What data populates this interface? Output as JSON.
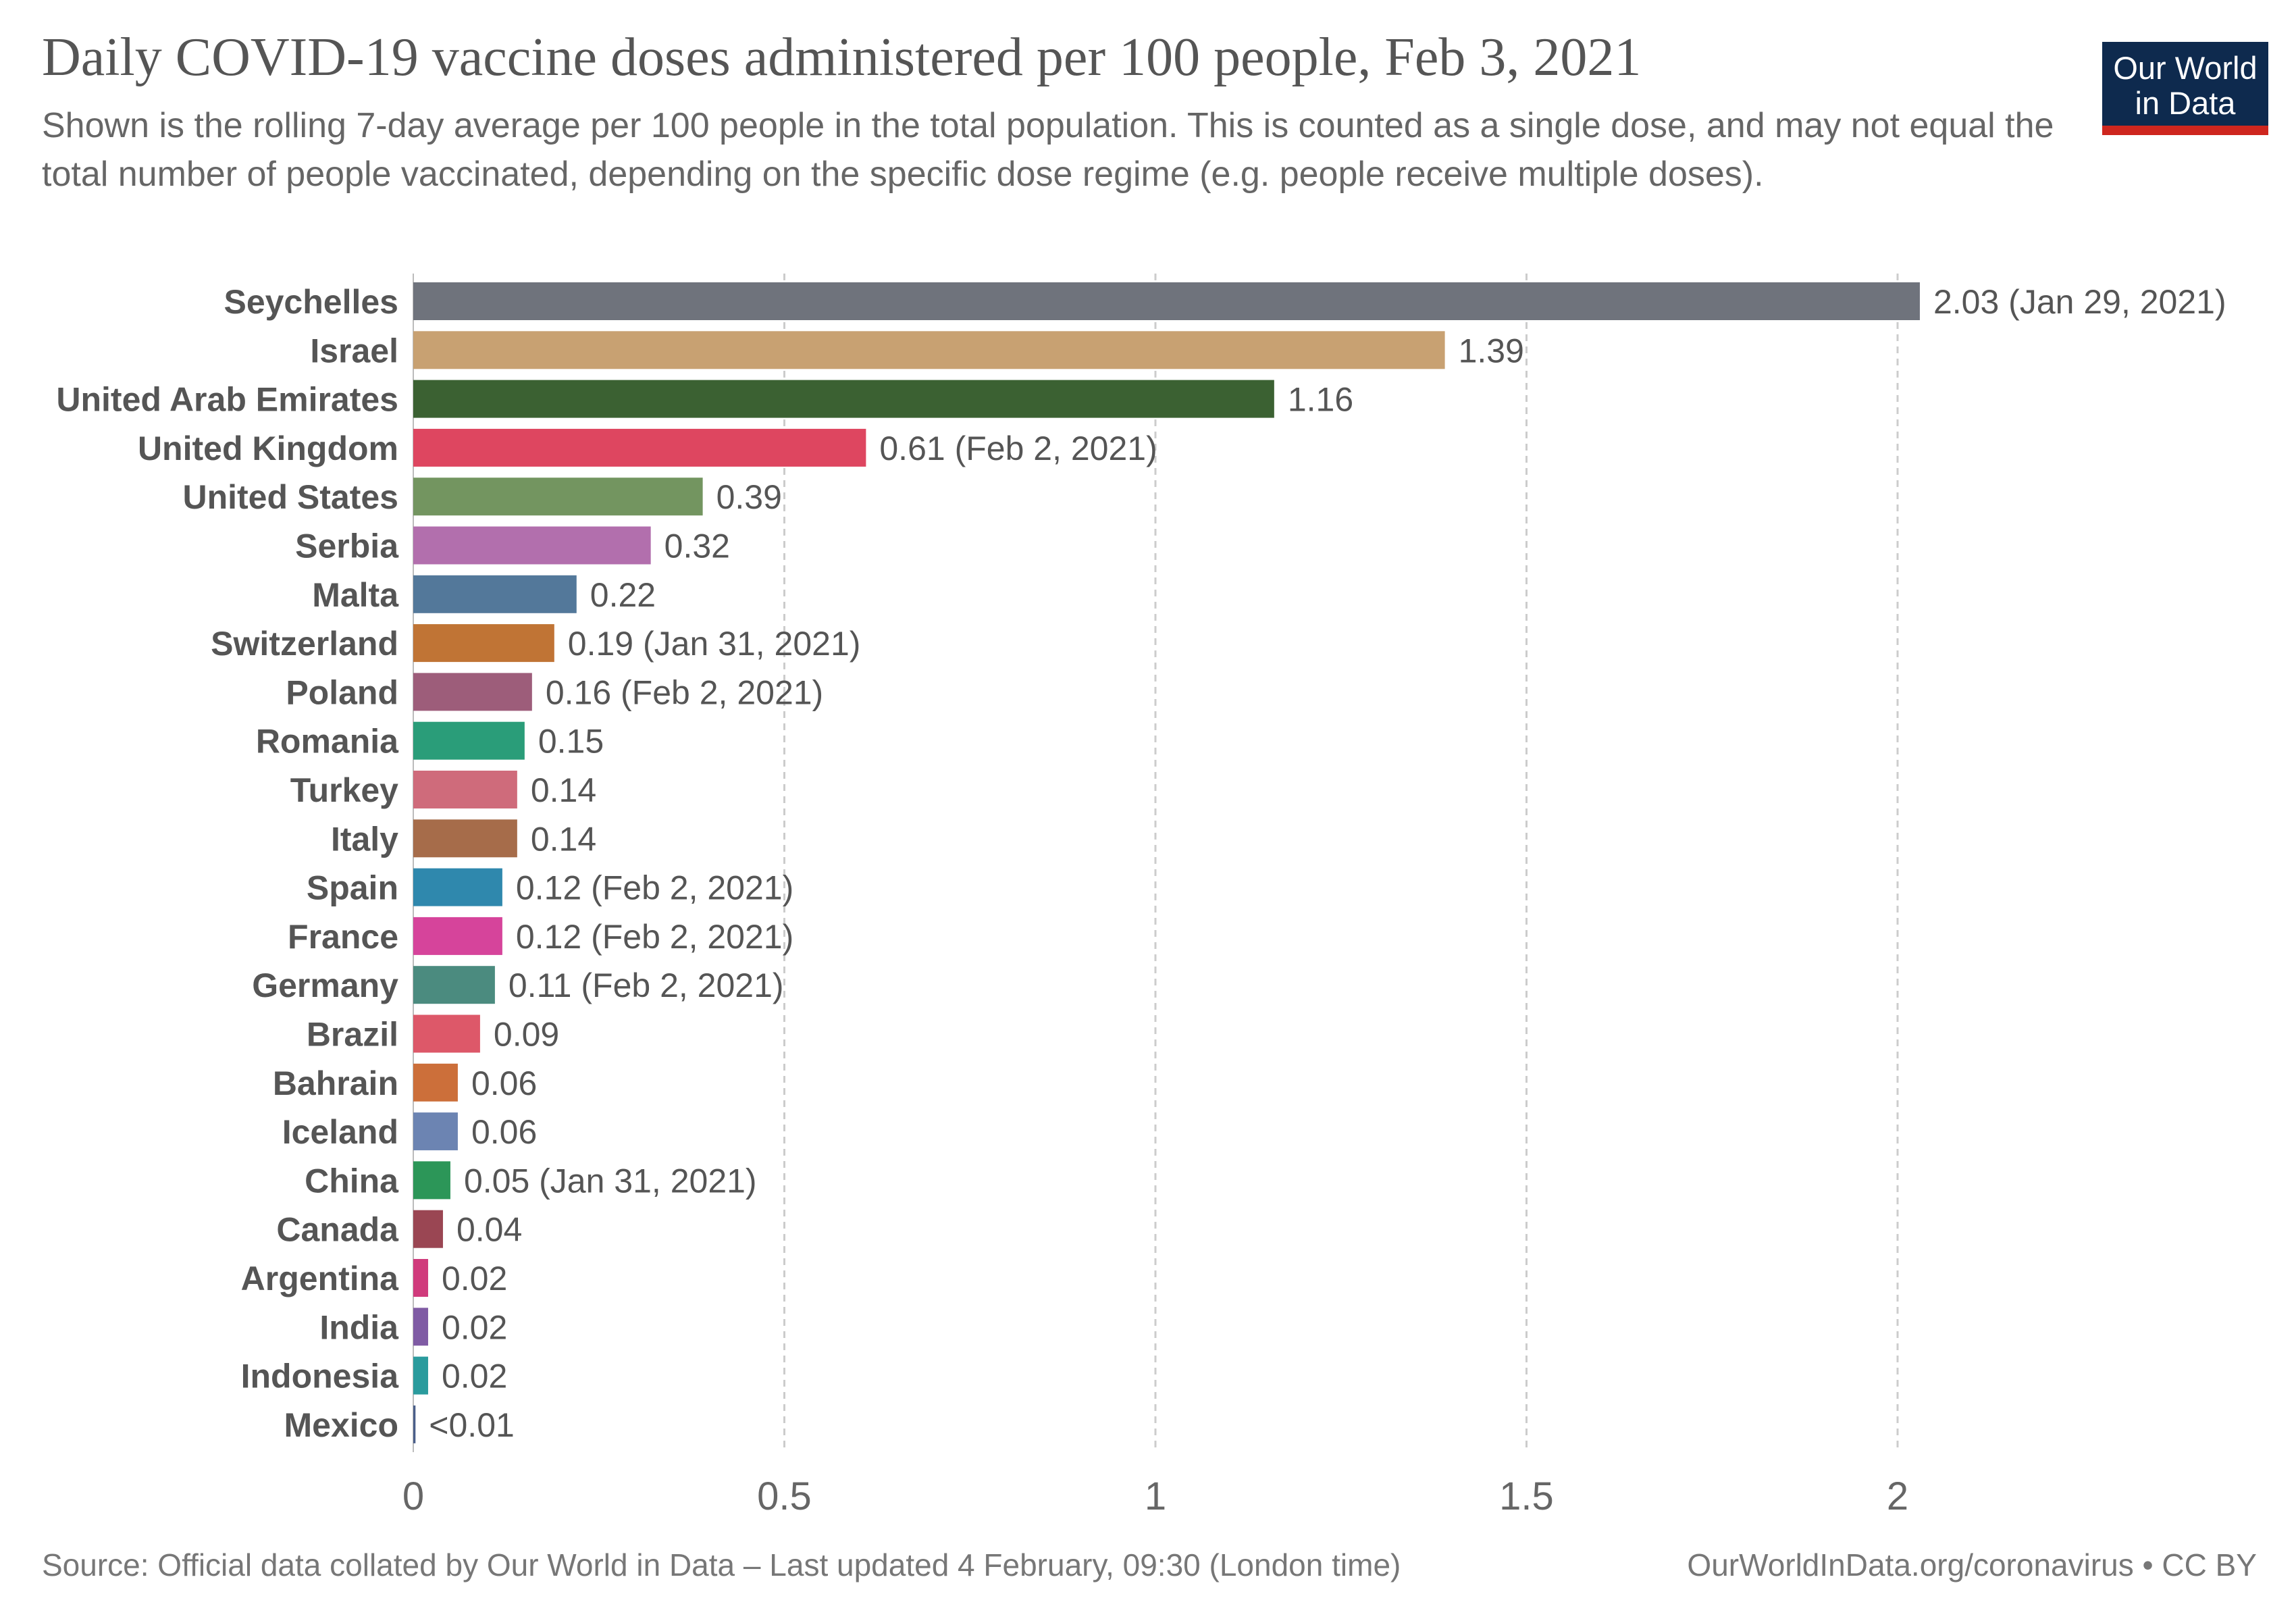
{
  "header": {
    "title": "Daily COVID-19 vaccine doses administered per 100 people, Feb 3, 2021",
    "subtitle": "Shown is the rolling 7-day average per 100 people in the total population. This is counted as a single dose, and may not equal the total number of people vaccinated, depending on the specific dose regime (e.g. people receive multiple doses)."
  },
  "logo": {
    "text": "Our World in Data",
    "bg_color": "#0e2a4e",
    "accent_color": "#ce261e"
  },
  "footer": {
    "source": "Source: Official data collated by Our World in Data – Last updated 4 February, 09:30 (London time)",
    "link": "OurWorldInData.org/coronavirus • CC BY"
  },
  "chart_data": {
    "type": "bar",
    "orientation": "horizontal",
    "xlim": [
      0,
      2
    ],
    "xticks": [
      0,
      0.5,
      1,
      1.5,
      2
    ],
    "xtick_labels": [
      "0",
      "0.5",
      "1",
      "1.5",
      "2"
    ],
    "grid": "vertical dashed",
    "bars": [
      {
        "label": "Seychelles",
        "value": 2.03,
        "value_label": "2.03 (Jan 29, 2021)",
        "color": "#6f737c"
      },
      {
        "label": "Israel",
        "value": 1.39,
        "value_label": "1.39",
        "color": "#c8a172"
      },
      {
        "label": "United Arab Emirates",
        "value": 1.16,
        "value_label": "1.16",
        "color": "#3b6132"
      },
      {
        "label": "United Kingdom",
        "value": 0.61,
        "value_label": "0.61 (Feb 2, 2021)",
        "color": "#de4660"
      },
      {
        "label": "United States",
        "value": 0.39,
        "value_label": "0.39",
        "color": "#739560"
      },
      {
        "label": "Serbia",
        "value": 0.32,
        "value_label": "0.32",
        "color": "#b26fad"
      },
      {
        "label": "Malta",
        "value": 0.22,
        "value_label": "0.22",
        "color": "#53789a"
      },
      {
        "label": "Switzerland",
        "value": 0.19,
        "value_label": "0.19 (Jan 31, 2021)",
        "color": "#c07435"
      },
      {
        "label": "Poland",
        "value": 0.16,
        "value_label": "0.16 (Feb 2, 2021)",
        "color": "#9d5d7a"
      },
      {
        "label": "Romania",
        "value": 0.15,
        "value_label": "0.15",
        "color": "#2a9d79"
      },
      {
        "label": "Turkey",
        "value": 0.14,
        "value_label": "0.14",
        "color": "#cf6b7b"
      },
      {
        "label": "Italy",
        "value": 0.14,
        "value_label": "0.14",
        "color": "#a66c4a"
      },
      {
        "label": "Spain",
        "value": 0.12,
        "value_label": "0.12 (Feb 2, 2021)",
        "color": "#2f88ad"
      },
      {
        "label": "France",
        "value": 0.12,
        "value_label": "0.12 (Feb 2, 2021)",
        "color": "#d6449b"
      },
      {
        "label": "Germany",
        "value": 0.11,
        "value_label": "0.11 (Feb 2, 2021)",
        "color": "#4b8b7f"
      },
      {
        "label": "Brazil",
        "value": 0.09,
        "value_label": "0.09",
        "color": "#dd5869"
      },
      {
        "label": "Bahrain",
        "value": 0.06,
        "value_label": "0.06",
        "color": "#cc6f3a"
      },
      {
        "label": "Iceland",
        "value": 0.06,
        "value_label": "0.06",
        "color": "#6c84b2"
      },
      {
        "label": "China",
        "value": 0.05,
        "value_label": "0.05 (Jan 31, 2021)",
        "color": "#2c9658"
      },
      {
        "label": "Canada",
        "value": 0.04,
        "value_label": "0.04",
        "color": "#9a4653"
      },
      {
        "label": "Argentina",
        "value": 0.02,
        "value_label": "0.02",
        "color": "#d03b7c"
      },
      {
        "label": "India",
        "value": 0.02,
        "value_label": "0.02",
        "color": "#7f5ba4"
      },
      {
        "label": "Indonesia",
        "value": 0.02,
        "value_label": "0.02",
        "color": "#2a9b9d"
      },
      {
        "label": "Mexico",
        "value": 0.003,
        "value_label": "<0.01",
        "color": "#4a5f8a"
      }
    ]
  }
}
